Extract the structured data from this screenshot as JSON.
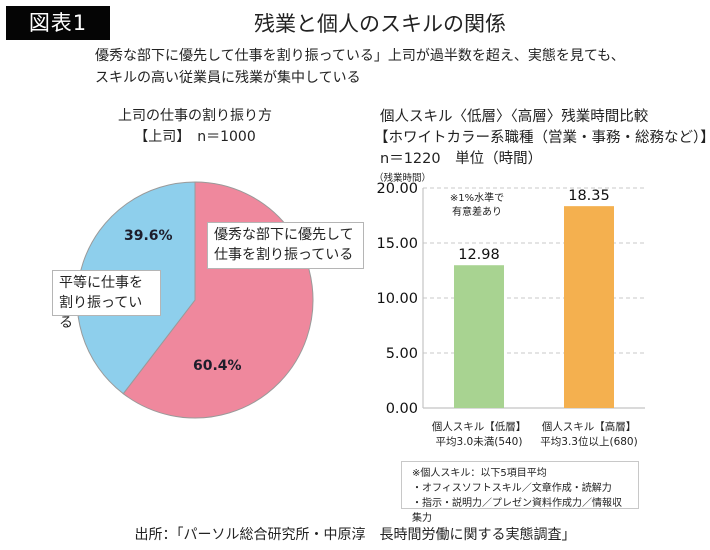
{
  "header": {
    "badge": "図表1",
    "title": "残業と個人のスキルの関係",
    "subtitle_lines": [
      "優秀な部下に優先して仕事を割り振っている」上司が過半数を超え、実態を見ても、",
      "スキルの高い従業員に残業が集中している"
    ]
  },
  "colors": {
    "pie_pink": "#ef889d",
    "pie_blue": "#8ecfec",
    "bar_green": "#a8d391",
    "bar_orange": "#f4b04f",
    "badge_bg": "#050505"
  },
  "chart_data": [
    {
      "type": "pie",
      "title_lines": [
        "上司の仕事の割り振り方",
        "【上司】　n＝1000"
      ],
      "slices": [
        {
          "label": "優秀な部下に優先して仕事を割り振っている",
          "label_lines": [
            "優秀な部下に優先して",
            "仕事を割り振っている"
          ],
          "value": 60.4,
          "value_label": "60.4%",
          "color": "#ef889d"
        },
        {
          "label": "平等に仕事を割り振っている",
          "label_lines": [
            "平等に仕事を",
            "割り振っている"
          ],
          "value": 39.6,
          "value_label": "39.6%",
          "color": "#8ecfec"
        }
      ],
      "start": "top",
      "direction": "clockwise"
    },
    {
      "type": "bar",
      "title_lines": [
        "個人スキル〈低層〉〈高層〉残業時間比較",
        "【ホワイトカラー系職種（営業・事務・総務など）】",
        "n＝1220　単位（時間）"
      ],
      "ylabel": "（残業時間）",
      "xlabel": "",
      "ylim": [
        0,
        20
      ],
      "yticks": [
        0,
        5,
        10,
        15,
        20
      ],
      "ytick_labels": [
        "0.00",
        "5.00",
        "10.00",
        "15.00",
        "20.00"
      ],
      "grid": true,
      "categories": [
        {
          "line1": "個人スキル【低層】",
          "line2": "平均3.0未満(540)"
        },
        {
          "line1": "個人スキル【高層】",
          "line2": "平均3.3位以上(680)"
        }
      ],
      "values": [
        12.98,
        18.35
      ],
      "value_labels": [
        "12.98",
        "18.35"
      ],
      "bar_colors": [
        "#a8d391",
        "#f4b04f"
      ],
      "annotation_lines": [
        "※1%水準で",
        "有意差あり"
      ]
    }
  ],
  "note": {
    "lines": [
      "※個人スキル：以下5項目平均",
      "・オフィスソフトスキル／文章作成・読解力",
      "・指示・説明力／プレゼン資料作成力／情報収集力"
    ]
  },
  "source": "出所：「パーソル総合研究所・中原淳　長時間労働に関する実態調査」"
}
